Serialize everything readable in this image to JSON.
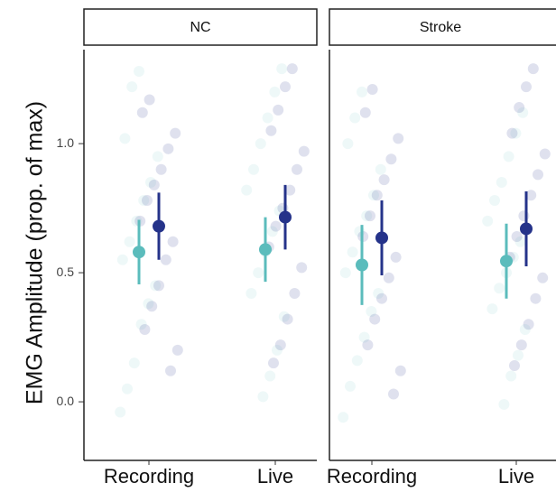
{
  "chart_data": {
    "type": "pointrange",
    "y_label": "EMG Amplitude  (prop. of max)",
    "categories": [
      "Recording",
      "Live"
    ],
    "ylim": [
      -0.227,
      1.364
    ],
    "yticks": [
      {
        "value": 0,
        "label": "0.0"
      },
      {
        "value": 0.5,
        "label": "0.5"
      },
      {
        "value": 1,
        "label": "1.0"
      }
    ],
    "panels": [
      {
        "title": "NC",
        "series": [
          {
            "color": "#5bbcbc",
            "values": [
              0.58,
              0.59
            ],
            "errors": [
              0.125,
              0.125
            ],
            "raw": [
              [
                -0.04,
                0.05,
                0.15,
                0.3,
                0.38,
                0.45,
                0.55,
                0.62,
                0.7,
                0.78,
                0.85,
                0.95,
                1.02,
                1.22,
                1.28
              ],
              [
                0.02,
                0.1,
                0.2,
                0.33,
                0.42,
                0.5,
                0.58,
                0.66,
                0.74,
                0.82,
                0.9,
                1.0,
                1.1,
                1.2,
                1.29
              ]
            ]
          },
          {
            "color": "#25338a",
            "values": [
              0.68,
              0.715
            ],
            "errors": [
              0.13,
              0.125
            ],
            "raw": [
              [
                0.12,
                0.2,
                0.28,
                0.37,
                0.45,
                0.55,
                0.62,
                0.7,
                0.78,
                0.84,
                0.9,
                0.98,
                1.04,
                1.12,
                1.17
              ],
              [
                0.15,
                0.22,
                0.32,
                0.42,
                0.52,
                0.6,
                0.68,
                0.75,
                0.82,
                0.9,
                0.97,
                1.05,
                1.13,
                1.22,
                1.29
              ]
            ]
          }
        ]
      },
      {
        "title": "Stroke",
        "series": [
          {
            "color": "#5bbcbc",
            "values": [
              0.53,
              0.545
            ],
            "errors": [
              0.155,
              0.145
            ],
            "raw": [
              [
                -0.06,
                0.06,
                0.16,
                0.25,
                0.35,
                0.42,
                0.5,
                0.58,
                0.66,
                0.72,
                0.8,
                0.9,
                1.0,
                1.1,
                1.2
              ],
              [
                -0.01,
                0.1,
                0.18,
                0.28,
                0.36,
                0.44,
                0.5,
                0.56,
                0.62,
                0.7,
                0.78,
                0.85,
                0.95,
                1.04,
                1.12
              ]
            ]
          },
          {
            "color": "#25338a",
            "values": [
              0.635,
              0.67
            ],
            "errors": [
              0.145,
              0.145
            ],
            "raw": [
              [
                0.03,
                0.12,
                0.22,
                0.32,
                0.4,
                0.48,
                0.56,
                0.64,
                0.72,
                0.8,
                0.86,
                0.94,
                1.02,
                1.12,
                1.21
              ],
              [
                0.14,
                0.22,
                0.3,
                0.4,
                0.48,
                0.56,
                0.64,
                0.72,
                0.8,
                0.88,
                0.96,
                1.04,
                1.14,
                1.22,
                1.29
              ]
            ]
          }
        ]
      }
    ]
  }
}
